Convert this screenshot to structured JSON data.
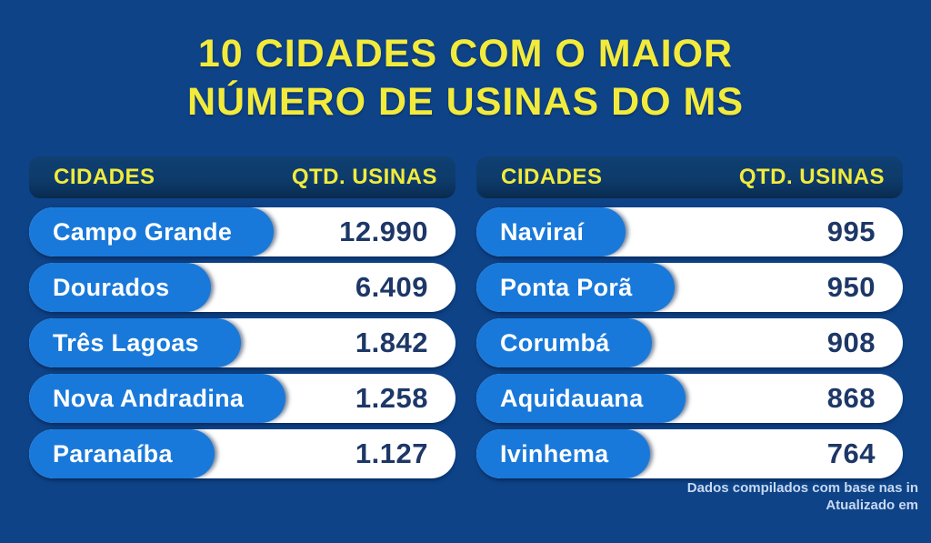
{
  "title": {
    "line1": "10 CIDADES COM O MAIOR",
    "line2": "NÚMERO DE USINAS DO MS"
  },
  "colors": {
    "background": "#0e4388",
    "header_bar": "#0d3a69",
    "city_pill": "#1979da",
    "row_pill": "#ffffff",
    "accent_yellow": "#f2eb3c",
    "value_text": "#1d3767",
    "footer_text": "#c7d9f0"
  },
  "tables": [
    {
      "header_city": "CIDADES",
      "header_qty": "QTD. USINAS",
      "rows": [
        {
          "city": "Campo Grande",
          "qty": "12.990"
        },
        {
          "city": "Dourados",
          "qty": "6.409"
        },
        {
          "city": "Três Lagoas",
          "qty": "1.842"
        },
        {
          "city": "Nova Andradina",
          "qty": "1.258"
        },
        {
          "city": "Paranaíba",
          "qty": "1.127"
        }
      ]
    },
    {
      "header_city": "CIDADES",
      "header_qty": "QTD. USINAS",
      "rows": [
        {
          "city": "Naviraí",
          "qty": "995"
        },
        {
          "city": "Ponta Porã",
          "qty": "950"
        },
        {
          "city": "Corumbá",
          "qty": "908"
        },
        {
          "city": "Aquidauana",
          "qty": "868"
        },
        {
          "city": "Ivinhema",
          "qty": "764"
        }
      ]
    }
  ],
  "footer": {
    "line1": "Dados compilados com base nas in",
    "line2": "Atualizado em"
  },
  "chart_data": {
    "type": "table",
    "title": "10 CIDADES COM O MAIOR NÚMERO DE USINAS DO MS",
    "columns": [
      "CIDADES",
      "QTD. USINAS"
    ],
    "categories": [
      "Campo Grande",
      "Dourados",
      "Três Lagoas",
      "Nova Andradina",
      "Paranaíba",
      "Naviraí",
      "Ponta Porã",
      "Corumbá",
      "Aquidauana",
      "Ivinhema"
    ],
    "values": [
      12990,
      6409,
      1842,
      1258,
      1127,
      995,
      950,
      908,
      868,
      764
    ],
    "values_formatted": [
      "12.990",
      "6.409",
      "1.842",
      "1.258",
      "1.127",
      "995",
      "950",
      "908",
      "868",
      "764"
    ],
    "layout": "two side-by-side tables of 5 rows each, city pill width fits text (not value-proportional)"
  }
}
